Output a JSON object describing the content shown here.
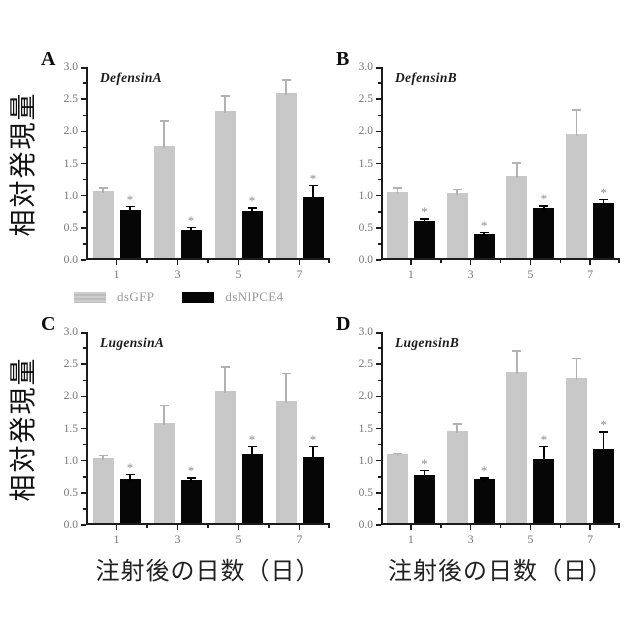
{
  "figure": {
    "y_axis_label": "相対発現量",
    "x_axis_label": "注射後の日数（日）",
    "significance_marker": "*",
    "colors": {
      "grey_bar": "#c8c8c8",
      "grey_error": "#b2b2b2",
      "black_bar": "#060606",
      "black_error": "#000000",
      "axis": "#1c1c1c",
      "tick_text": "#767676",
      "marker_text": "#8f8f8f"
    },
    "legend": [
      {
        "label": "dsGFP",
        "color": "#c8c8c8"
      },
      {
        "label": "dsNlPCE4",
        "color": "#060606"
      }
    ]
  },
  "chart_data": [
    {
      "type": "bar",
      "panel": "A",
      "title": "DefensinA",
      "categories": [
        "1",
        "3",
        "5",
        "7"
      ],
      "xlabel": "",
      "ylabel": "相対発現量",
      "ylim": [
        0,
        3.0
      ],
      "yticks": [
        0.0,
        0.5,
        1.0,
        1.5,
        2.0,
        2.5,
        3.0
      ],
      "grid": false,
      "series": [
        {
          "name": "dsGFP",
          "color": "#c8c8c8",
          "values": [
            1.04,
            1.74,
            2.28,
            2.57
          ],
          "errors": [
            0.09,
            0.43,
            0.28,
            0.24
          ],
          "significant": [
            false,
            false,
            false,
            false
          ]
        },
        {
          "name": "dsNlPCE4",
          "color": "#060606",
          "values": [
            0.75,
            0.44,
            0.73,
            0.95
          ],
          "errors": [
            0.09,
            0.08,
            0.09,
            0.22
          ],
          "significant": [
            true,
            true,
            true,
            true
          ]
        }
      ]
    },
    {
      "type": "bar",
      "panel": "B",
      "title": "DefensinB",
      "categories": [
        "1",
        "3",
        "5",
        "7"
      ],
      "xlabel": "",
      "ylabel": "",
      "ylim": [
        0,
        3.0
      ],
      "yticks": [
        0.0,
        0.5,
        1.0,
        1.5,
        2.0,
        2.5,
        3.0
      ],
      "grid": false,
      "series": [
        {
          "name": "dsGFP",
          "color": "#c8c8c8",
          "values": [
            1.02,
            1.01,
            1.28,
            1.92
          ],
          "errors": [
            0.11,
            0.1,
            0.24,
            0.42
          ],
          "significant": [
            false,
            false,
            false,
            false
          ]
        },
        {
          "name": "dsNlPCE4",
          "color": "#060606",
          "values": [
            0.58,
            0.37,
            0.77,
            0.86
          ],
          "errors": [
            0.07,
            0.07,
            0.08,
            0.09
          ],
          "significant": [
            true,
            true,
            true,
            true
          ]
        }
      ]
    },
    {
      "type": "bar",
      "panel": "C",
      "title": "LugensinA",
      "categories": [
        "1",
        "3",
        "5",
        "7"
      ],
      "xlabel": "注射後の日数（日）",
      "ylabel": "相対発現量",
      "ylim": [
        0,
        3.0
      ],
      "yticks": [
        0.0,
        0.5,
        1.0,
        1.5,
        2.0,
        2.5,
        3.0
      ],
      "grid": false,
      "series": [
        {
          "name": "dsGFP",
          "color": "#c8c8c8",
          "values": [
            1.01,
            1.55,
            2.05,
            1.9
          ],
          "errors": [
            0.08,
            0.32,
            0.42,
            0.47
          ],
          "significant": [
            false,
            false,
            false,
            false
          ]
        },
        {
          "name": "dsNlPCE4",
          "color": "#060606",
          "values": [
            0.68,
            0.67,
            1.07,
            1.02
          ],
          "errors": [
            0.12,
            0.07,
            0.16,
            0.21
          ],
          "significant": [
            true,
            true,
            true,
            true
          ]
        }
      ]
    },
    {
      "type": "bar",
      "panel": "D",
      "title": "LugensinB",
      "categories": [
        "1",
        "3",
        "5",
        "7"
      ],
      "xlabel": "注射後の日数（日）",
      "ylabel": "",
      "ylim": [
        0,
        3.0
      ],
      "yticks": [
        0.0,
        0.5,
        1.0,
        1.5,
        2.0,
        2.5,
        3.0
      ],
      "grid": false,
      "series": [
        {
          "name": "dsGFP",
          "color": "#c8c8c8",
          "values": [
            1.07,
            1.43,
            2.35,
            2.25
          ],
          "errors": [
            0.05,
            0.15,
            0.37,
            0.35
          ],
          "significant": [
            false,
            false,
            false,
            false
          ]
        },
        {
          "name": "dsNlPCE4",
          "color": "#060606",
          "values": [
            0.75,
            0.68,
            1.0,
            1.15
          ],
          "errors": [
            0.11,
            0.06,
            0.23,
            0.31
          ],
          "significant": [
            true,
            true,
            true,
            true
          ]
        }
      ]
    }
  ]
}
